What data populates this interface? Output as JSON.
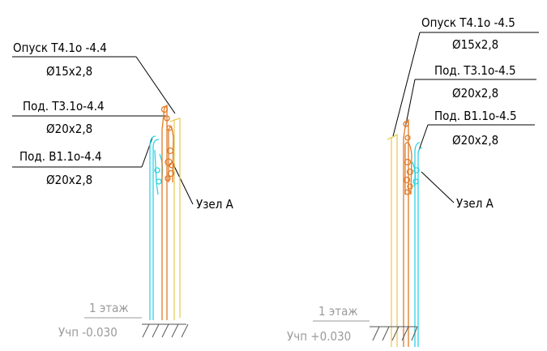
{
  "left_group": {
    "callout_1": {
      "title": "Опуск Т4.1о -4.4",
      "spec": "Ø15х2,8"
    },
    "callout_2": {
      "title": "Под. Т3.1о-4.4",
      "spec": "Ø20х2,8"
    },
    "callout_3": {
      "title": "Под. В1.1о-4.4",
      "spec": "Ø20х2,8"
    },
    "node_label": "Узел А",
    "level": {
      "floor": "1 этаж",
      "mark": "Учп -0.030"
    }
  },
  "right_group": {
    "callout_1": {
      "title": "Опуск Т4.1о -4.5",
      "spec": "Ø15х2,8"
    },
    "callout_2": {
      "title": "Под. Т3.1о-4.5",
      "spec": "Ø20х2,8"
    },
    "callout_3": {
      "title": "Под. В1.1о-4.5",
      "spec": "Ø20х2,8"
    },
    "node_label": "Узел А",
    "level": {
      "floor": "1 этаж",
      "mark": "Учп +0.030"
    }
  },
  "colors": {
    "background": "#ffffff",
    "text": "#000000",
    "level_text": "#9a9a9a",
    "pipe_cold_water": "#2fd3e6",
    "pipe_heating_supply": "#e07a26",
    "pipe_heating_return": "#e8cc5a"
  }
}
